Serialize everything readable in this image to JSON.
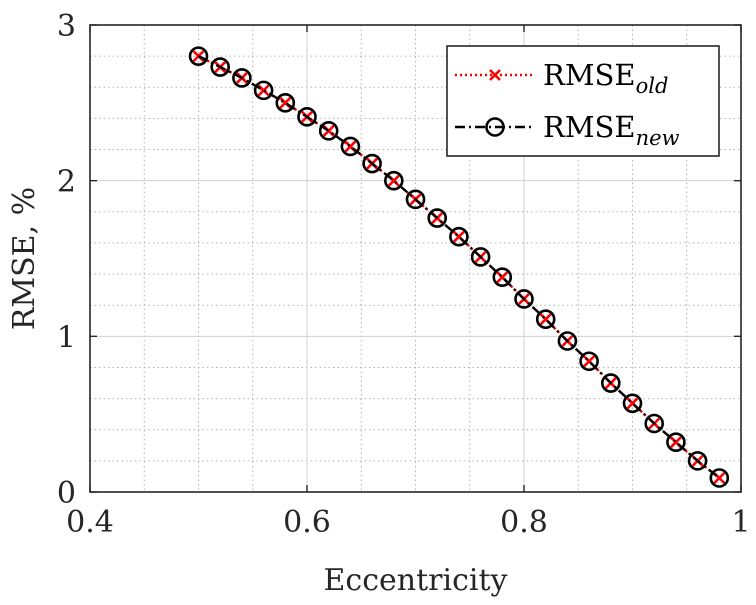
{
  "chart_data": {
    "type": "line",
    "title": "",
    "xlabel": "Eccentricity",
    "ylabel": "RMSE, %",
    "xlim": [
      0.4,
      1
    ],
    "ylim": [
      0,
      3
    ],
    "xticks": [
      0.4,
      0.6,
      0.8,
      1
    ],
    "yticks": [
      0,
      1,
      2,
      3
    ],
    "xtick_labels": [
      "0.4",
      "0.6",
      "0.8",
      "1"
    ],
    "ytick_labels": [
      "0",
      "1",
      "2",
      "3"
    ],
    "minor_grid": true,
    "grid": true,
    "legend_position": "top-right",
    "x": [
      0.5,
      0.52,
      0.54,
      0.56,
      0.58,
      0.6,
      0.62,
      0.64,
      0.66,
      0.68,
      0.7,
      0.72,
      0.74,
      0.76,
      0.78,
      0.8,
      0.82,
      0.84,
      0.86,
      0.88,
      0.9,
      0.92,
      0.94,
      0.96,
      0.98
    ],
    "series": [
      {
        "name": "RMSE",
        "subscript": "old",
        "color": "#ff0000",
        "marker": "x",
        "line_style": "dotted",
        "values": [
          2.8,
          2.73,
          2.66,
          2.58,
          2.5,
          2.41,
          2.32,
          2.22,
          2.11,
          2.0,
          1.88,
          1.76,
          1.64,
          1.51,
          1.38,
          1.24,
          1.11,
          0.97,
          0.84,
          0.7,
          0.57,
          0.44,
          0.32,
          0.2,
          0.09
        ]
      },
      {
        "name": "RMSE",
        "subscript": "new",
        "color": "#000000",
        "marker": "o",
        "line_style": "dashdot",
        "values": [
          2.8,
          2.73,
          2.66,
          2.58,
          2.5,
          2.41,
          2.32,
          2.22,
          2.11,
          2.0,
          1.88,
          1.76,
          1.64,
          1.51,
          1.38,
          1.24,
          1.11,
          0.97,
          0.84,
          0.7,
          0.57,
          0.44,
          0.32,
          0.2,
          0.09
        ]
      }
    ]
  }
}
